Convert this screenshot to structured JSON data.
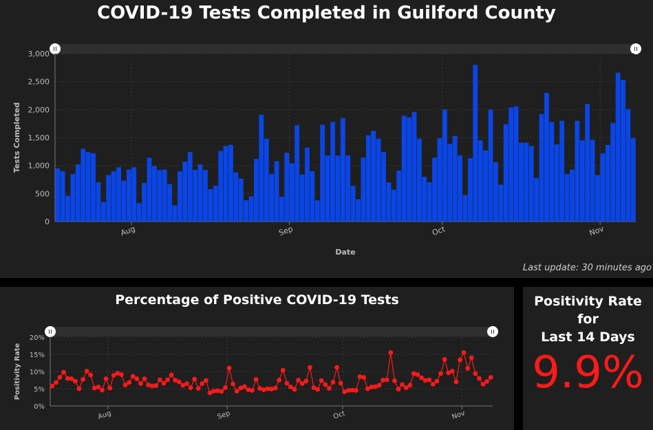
{
  "top_panel": {
    "title": "COVID-19 Tests Completed in Guilford County",
    "last_update": "Last update: 30 minutes ago"
  },
  "bottom_left_panel": {
    "title": "Percentage of Positive COVID-19 Tests"
  },
  "kpi_panel": {
    "title_line1": "Positivity Rate for",
    "title_line2": "Last 14 Days",
    "value": "9.9%"
  },
  "colors": {
    "bar": "#0a46e6",
    "line": "#ff1a1a",
    "kpi": "#ff1a1a",
    "background": "#1f1f1f"
  },
  "chart_data": [
    {
      "type": "bar",
      "xlabel": "Date",
      "ylabel": "Tests Completed",
      "ylim": [
        0,
        3000
      ],
      "yticks": [
        0,
        500,
        1000,
        1500,
        2000,
        2500,
        3000
      ],
      "ytick_labels": [
        "0",
        "500",
        "1,000",
        "1,500",
        "2,000",
        "2,500",
        "3,000"
      ],
      "xtick_labels": [
        {
          "label": "Aug",
          "index": 15
        },
        {
          "label": "Sep",
          "index": 46
        },
        {
          "label": "Oct",
          "index": 76
        },
        {
          "label": "Nov",
          "index": 107
        }
      ],
      "grid": true,
      "values": [
        950,
        900,
        460,
        850,
        1020,
        1300,
        1240,
        1220,
        700,
        350,
        830,
        900,
        970,
        730,
        930,
        970,
        330,
        690,
        1140,
        990,
        920,
        930,
        670,
        290,
        900,
        1070,
        1240,
        920,
        1020,
        920,
        580,
        640,
        1260,
        1350,
        1370,
        880,
        770,
        380,
        450,
        1120,
        1910,
        1480,
        850,
        1080,
        440,
        1230,
        1040,
        1720,
        840,
        1320,
        900,
        380,
        1730,
        1180,
        1780,
        1180,
        1850,
        1180,
        640,
        400,
        1140,
        1540,
        1620,
        1480,
        1240,
        700,
        570,
        910,
        1890,
        1860,
        1960,
        1480,
        800,
        700,
        1140,
        1490,
        2000,
        1390,
        1530,
        1180,
        470,
        1130,
        2800,
        1450,
        1270,
        2000,
        1060,
        660,
        1740,
        2040,
        2060,
        1410,
        1410,
        1350,
        780,
        1920,
        2300,
        1780,
        1380,
        1800,
        850,
        930,
        1800,
        1450,
        2100,
        1460,
        830,
        1220,
        1370,
        1760,
        2660,
        2530,
        2010,
        1490
      ]
    },
    {
      "type": "line",
      "xlabel": "",
      "ylabel": "Positivity Rate",
      "ylim": [
        0,
        20
      ],
      "yticks": [
        0,
        5,
        10,
        15,
        20
      ],
      "ytick_labels": [
        "0%",
        "5%",
        "10%",
        "15%",
        "20%"
      ],
      "xtick_labels": [
        {
          "label": "Aug",
          "index": 15
        },
        {
          "label": "Sep",
          "index": 46
        },
        {
          "label": "Oct",
          "index": 76
        },
        {
          "label": "Nov",
          "index": 107
        }
      ],
      "grid": true,
      "values": [
        5.8,
        6.8,
        8.3,
        9.8,
        8.0,
        7.9,
        7.2,
        5.0,
        7.7,
        10.1,
        9.0,
        5.2,
        5.5,
        4.6,
        7.9,
        5.2,
        8.9,
        9.5,
        9.1,
        6.1,
        6.8,
        8.6,
        7.9,
        6.5,
        7.9,
        6.1,
        5.8,
        5.9,
        7.6,
        6.6,
        7.6,
        9.0,
        7.5,
        7.0,
        6.0,
        6.5,
        5.3,
        7.8,
        5.1,
        6.5,
        7.4,
        3.8,
        4.3,
        4.4,
        4.2,
        5.3,
        11.0,
        6.4,
        4.3,
        5.2,
        5.6,
        4.7,
        4.5,
        7.7,
        5.1,
        4.7,
        5.0,
        4.9,
        5.2,
        7.5,
        10.4,
        6.6,
        5.5,
        4.8,
        7.5,
        6.5,
        7.2,
        11.2,
        5.3,
        4.8,
        7.4,
        6.2,
        5.1,
        6.9,
        11.2,
        6.6,
        4.1,
        4.5,
        4.6,
        4.5,
        8.5,
        8.3,
        5.0,
        5.5,
        5.6,
        6.0,
        7.5,
        7.6,
        15.5,
        7.3,
        4.9,
        6.2,
        5.3,
        6.0,
        9.4,
        9.1,
        8.2,
        7.4,
        7.6,
        6.3,
        7.2,
        9.4,
        13.5,
        9.6,
        10.1,
        7.0,
        13.4,
        15.5,
        10.9,
        14.0,
        9.4,
        8.0,
        6.3,
        7.1,
        8.3
      ]
    }
  ]
}
